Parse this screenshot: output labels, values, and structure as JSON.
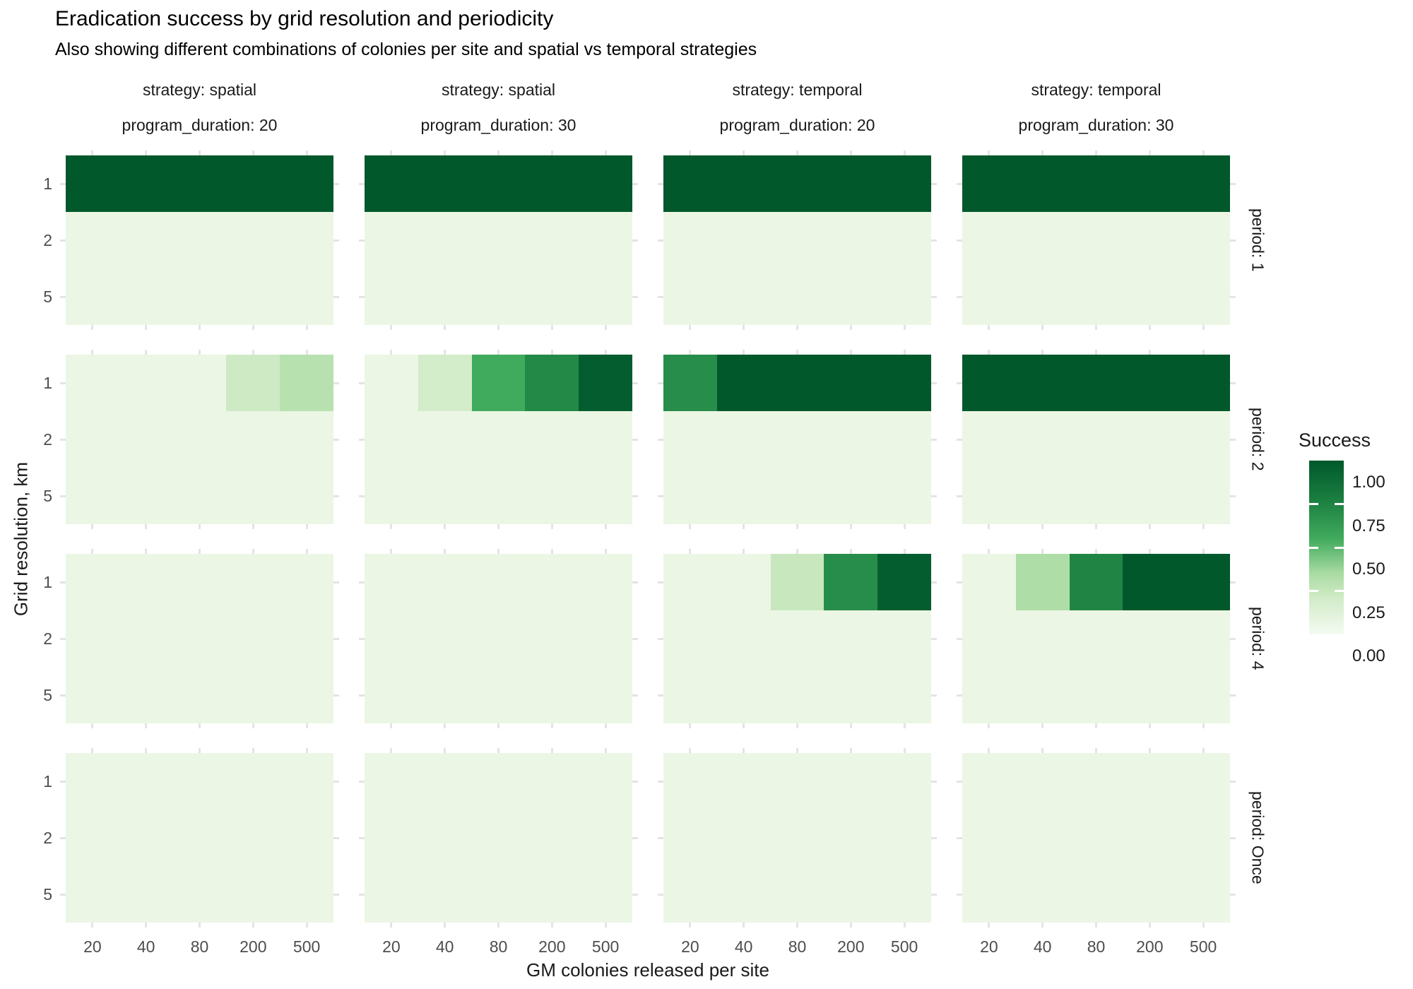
{
  "title": "Eradication success by grid resolution and periodicity",
  "subtitle": "Also showing different combinations of colonies per site and spatial vs temporal strategies",
  "chart_data": {
    "type": "heatmap",
    "title": "Eradication success by grid resolution and periodicity",
    "subtitle": "Also showing different combinations of colonies per site and spatial vs temporal strategies",
    "xlabel": "GM colonies released per site",
    "ylabel": "Grid resolution, km",
    "x_categories": [
      "20",
      "40",
      "80",
      "200",
      "500"
    ],
    "y_categories": [
      "1",
      "2",
      "5"
    ],
    "col_facets": [
      {
        "strategy": "strategy: spatial",
        "program_duration": "program_duration: 20"
      },
      {
        "strategy": "strategy: spatial",
        "program_duration": "program_duration: 30"
      },
      {
        "strategy": "strategy: temporal",
        "program_duration": "program_duration: 20"
      },
      {
        "strategy": "strategy: temporal",
        "program_duration": "program_duration: 30"
      }
    ],
    "row_facets": [
      "period: 1",
      "period: 2",
      "period: 4",
      "period: Once"
    ],
    "grid": "light stubs at tick positions, white panel background",
    "success": [
      [
        [
          [
            1,
            1,
            1,
            1,
            1
          ],
          [
            0,
            0,
            0,
            0,
            0
          ],
          [
            0,
            0,
            0,
            0,
            0
          ]
        ],
        [
          [
            1,
            1,
            1,
            1,
            1
          ],
          [
            0,
            0,
            0,
            0,
            0
          ],
          [
            0,
            0,
            0,
            0,
            0
          ]
        ],
        [
          [
            1,
            1,
            1,
            1,
            1
          ],
          [
            0,
            0,
            0,
            0,
            0
          ],
          [
            0,
            0,
            0,
            0,
            0
          ]
        ],
        [
          [
            1,
            1,
            1,
            1,
            1
          ],
          [
            0,
            0,
            0,
            0,
            0
          ],
          [
            0,
            0,
            0,
            0,
            0
          ]
        ]
      ],
      [
        [
          [
            0,
            0,
            0,
            0.22,
            0.3
          ],
          [
            0,
            0,
            0,
            0,
            0
          ],
          [
            0,
            0,
            0,
            0,
            0
          ]
        ],
        [
          [
            0,
            0.2,
            0.55,
            0.72,
            0.97
          ],
          [
            0,
            0,
            0,
            0,
            0
          ],
          [
            0,
            0,
            0,
            0,
            0
          ]
        ],
        [
          [
            0.7,
            1,
            1,
            1,
            1
          ],
          [
            0,
            0,
            0,
            0,
            0
          ],
          [
            0,
            0,
            0,
            0,
            0
          ]
        ],
        [
          [
            1,
            1,
            1,
            1,
            1
          ],
          [
            0,
            0,
            0,
            0,
            0
          ],
          [
            0,
            0,
            0,
            0,
            0
          ]
        ]
      ],
      [
        [
          [
            0,
            0,
            0,
            0,
            0
          ],
          [
            0,
            0,
            0,
            0,
            0
          ],
          [
            0,
            0,
            0,
            0,
            0
          ]
        ],
        [
          [
            0,
            0,
            0,
            0,
            0
          ],
          [
            0,
            0,
            0,
            0,
            0
          ],
          [
            0,
            0,
            0,
            0,
            0
          ]
        ],
        [
          [
            0,
            0,
            0.24,
            0.7,
            0.97
          ],
          [
            0,
            0,
            0,
            0,
            0
          ],
          [
            0,
            0,
            0,
            0,
            0
          ]
        ],
        [
          [
            0,
            0.33,
            0.74,
            1,
            1
          ],
          [
            0,
            0,
            0,
            0,
            0
          ],
          [
            0,
            0,
            0,
            0,
            0
          ]
        ]
      ],
      [
        [
          [
            0,
            0,
            0,
            0,
            0
          ],
          [
            0,
            0,
            0,
            0,
            0
          ],
          [
            0,
            0,
            0,
            0,
            0
          ]
        ],
        [
          [
            0,
            0,
            0,
            0,
            0
          ],
          [
            0,
            0,
            0,
            0,
            0
          ],
          [
            0,
            0,
            0,
            0,
            0
          ]
        ],
        [
          [
            0,
            0,
            0,
            0,
            0
          ],
          [
            0,
            0,
            0,
            0,
            0
          ],
          [
            0,
            0,
            0,
            0,
            0
          ]
        ],
        [
          [
            0,
            0,
            0,
            0,
            0
          ],
          [
            0,
            0,
            0,
            0,
            0
          ],
          [
            0,
            0,
            0,
            0,
            0
          ]
        ]
      ]
    ],
    "color_stops": [
      [
        0.0,
        "#ebf6e4"
      ],
      [
        0.2,
        "#d3ecca"
      ],
      [
        0.35,
        "#a9dba2"
      ],
      [
        0.55,
        "#41ab5d"
      ],
      [
        0.75,
        "#1e8343"
      ],
      [
        1.0,
        "#00582b"
      ]
    ],
    "legend": {
      "title": "Success",
      "tick_labels": [
        "1.00",
        "0.75",
        "0.50",
        "0.25",
        "0.00"
      ],
      "tick_values": [
        1.0,
        0.75,
        0.5,
        0.25,
        0.0
      ],
      "gradient_stops": [
        [
          0.0,
          "#f4fbf1"
        ],
        [
          0.2,
          "#d3ecca"
        ],
        [
          0.35,
          "#a9dba2"
        ],
        [
          0.55,
          "#41ab5d"
        ],
        [
          0.75,
          "#1e8343"
        ],
        [
          1.0,
          "#00582b"
        ]
      ],
      "position": "right"
    }
  }
}
